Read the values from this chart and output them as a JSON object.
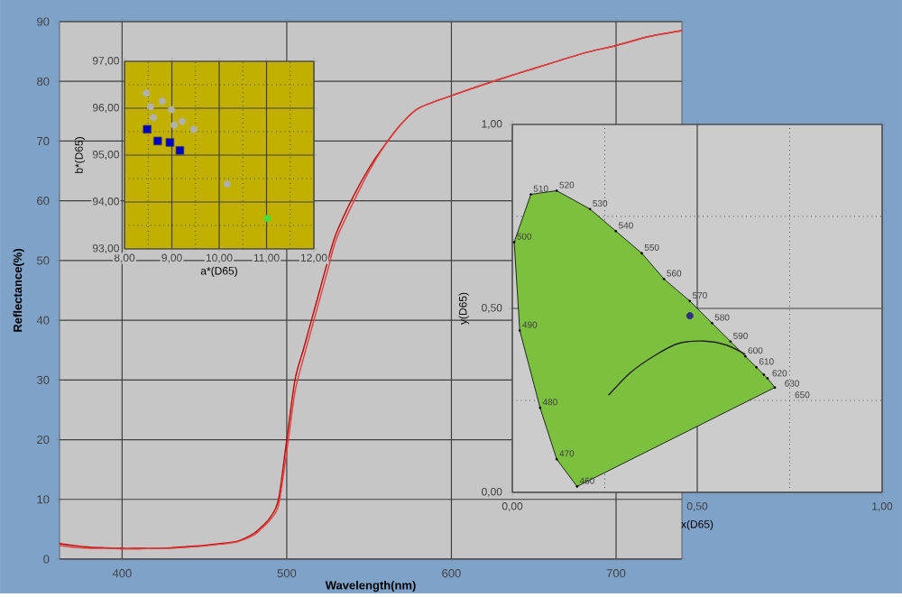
{
  "chart_data": [
    {
      "type": "line",
      "xlabel": "Wavelength(nm)",
      "ylabel": "Reflectance(%)",
      "x": [
        362,
        370,
        380,
        390,
        400,
        410,
        420,
        430,
        440,
        450,
        460,
        470,
        480,
        485,
        490,
        495,
        500,
        505,
        510,
        515,
        520,
        525,
        530,
        540,
        550,
        560,
        570,
        580,
        600,
        620,
        640,
        660,
        680,
        700,
        720,
        740
      ],
      "series": [
        {
          "color": "#c00000",
          "values": [
            2.6,
            2.3,
            2.0,
            1.9,
            1.8,
            1.8,
            1.8,
            1.9,
            2.1,
            2.3,
            2.6,
            3.0,
            4.3,
            5.5,
            7.0,
            10,
            20,
            30,
            35,
            40,
            45,
            50,
            54.5,
            60.5,
            65.5,
            69.5,
            73,
            75.5,
            77.6,
            79.5,
            81.3,
            83,
            84.7,
            86,
            87.5,
            88.5
          ]
        },
        {
          "color": "#e04040",
          "values": [
            2.3,
            2.0,
            1.8,
            1.8,
            1.7,
            1.7,
            1.8,
            1.8,
            2.0,
            2.2,
            2.5,
            2.9,
            4.0,
            5.2,
            6.6,
            9,
            18,
            28,
            33.5,
            38.5,
            43.5,
            48.5,
            53.5,
            59.5,
            65,
            69.5,
            73,
            75.5,
            77.6,
            79.5,
            81.3,
            83,
            84.7,
            86,
            87.5,
            88.5
          ]
        }
      ],
      "xlim": [
        362,
        740
      ],
      "ylim": [
        0,
        90
      ],
      "xticks": [
        400,
        500,
        600,
        700
      ],
      "yticks": [
        0,
        10,
        20,
        30,
        40,
        50,
        60,
        70,
        80,
        90
      ],
      "grid": true
    },
    {
      "type": "scatter",
      "xlabel": "a*(D65)",
      "ylabel": "b*(D65)",
      "series": [
        {
          "color": "#b0b0b0",
          "marker": "circle",
          "x": [
            8.46,
            8.55,
            8.8,
            8.99,
            8.61,
            9.05,
            9.22,
            9.46,
            10.17
          ],
          "values": [
            96.32,
            96.03,
            96.15,
            95.97,
            95.8,
            95.64,
            95.72,
            95.55,
            94.38
          ]
        },
        {
          "color": "#0000c0",
          "marker": "square",
          "x": [
            8.48,
            8.7,
            8.96,
            9.17
          ],
          "values": [
            95.55,
            95.3,
            95.27,
            95.1
          ]
        },
        {
          "color": "#40e040",
          "marker": "circle",
          "x": [
            11.02
          ],
          "values": [
            93.65
          ]
        }
      ],
      "xlim": [
        8,
        12
      ],
      "ylim": [
        93,
        97
      ],
      "xticks": [
        {
          "value": 8,
          "label": "8,00"
        },
        {
          "value": 8.5,
          "label": null
        },
        {
          "value": 9,
          "label": "9,00"
        },
        {
          "value": 9.5,
          "label": null
        },
        {
          "value": 10,
          "label": "10,00"
        },
        {
          "value": 10.5,
          "label": null
        },
        {
          "value": 11,
          "label": "11,00"
        },
        {
          "value": 11.5,
          "label": null
        },
        {
          "value": 12,
          "label": "12,00"
        }
      ],
      "yticks": [
        {
          "value": 93,
          "label": "93,00"
        },
        {
          "value": 93.5,
          "label": null
        },
        {
          "value": 94,
          "label": "94,00"
        },
        {
          "value": 94.5,
          "label": null
        },
        {
          "value": 95,
          "label": "95,00"
        },
        {
          "value": 95.5,
          "label": null
        },
        {
          "value": 96,
          "label": "96,00"
        },
        {
          "value": 96.5,
          "label": null
        },
        {
          "value": 97,
          "label": "97,00"
        }
      ],
      "grid": true
    },
    {
      "type": "scatter",
      "xlabel": "x(D65)",
      "ylabel": "y(D65)",
      "series": [
        {
          "type": "area",
          "color": "#7cc040",
          "marker": "circle",
          "x": [
            0.175,
            0.12,
            0.075,
            0.02,
            0.005,
            0.05,
            0.12,
            0.21,
            0.28,
            0.35,
            0.41,
            0.48,
            0.54,
            0.59,
            0.63,
            0.66,
            0.68,
            0.69,
            0.71
          ],
          "values": [
            0.016,
            0.09,
            0.23,
            0.44,
            0.68,
            0.81,
            0.82,
            0.77,
            0.71,
            0.65,
            0.58,
            0.52,
            0.46,
            0.41,
            0.37,
            0.34,
            0.32,
            0.31,
            0.285
          ]
        },
        {
          "type": "line",
          "color": "#202020",
          "marker": "none",
          "x": [
            0.26,
            0.32,
            0.39,
            0.45,
            0.52,
            0.58,
            0.63
          ],
          "values": [
            0.264,
            0.326,
            0.375,
            0.405,
            0.411,
            0.4,
            0.375
          ]
        },
        {
          "color": "#303080",
          "marker": "circle",
          "x": [
            0.48
          ],
          "values": [
            0.48
          ]
        }
      ],
      "annotations": [
        {
          "text": "460",
          "x": 0.175,
          "y": 0.016
        },
        {
          "text": "470",
          "x": 0.12,
          "y": 0.09
        },
        {
          "text": "480",
          "x": 0.075,
          "y": 0.23
        },
        {
          "text": "490",
          "x": 0.02,
          "y": 0.44
        },
        {
          "text": "500",
          "x": 0.005,
          "y": 0.68
        },
        {
          "text": "510",
          "x": 0.05,
          "y": 0.81
        },
        {
          "text": "520",
          "x": 0.12,
          "y": 0.82
        },
        {
          "text": "530",
          "x": 0.21,
          "y": 0.77
        },
        {
          "text": "540",
          "x": 0.28,
          "y": 0.71
        },
        {
          "text": "550",
          "x": 0.35,
          "y": 0.65
        },
        {
          "text": "560",
          "x": 0.41,
          "y": 0.58
        },
        {
          "text": "570",
          "x": 0.48,
          "y": 0.52
        },
        {
          "text": "580",
          "x": 0.54,
          "y": 0.46
        },
        {
          "text": "590",
          "x": 0.59,
          "y": 0.41
        },
        {
          "text": "600",
          "x": 0.63,
          "y": 0.37
        },
        {
          "text": "610",
          "x": 0.66,
          "y": 0.34
        },
        {
          "text": "620",
          "x": 0.68,
          "y": 0.32
        },
        {
          "text": "630",
          "x": 0.69,
          "y": 0.31
        },
        {
          "text": "650",
          "x": 0.71,
          "y": 0.285
        }
      ],
      "xlim": [
        0,
        1
      ],
      "ylim": [
        0,
        1
      ],
      "xticks": [
        {
          "value": 0,
          "label": "0,00"
        },
        {
          "value": 0.25,
          "label": null
        },
        {
          "value": 0.5,
          "label": "0,50"
        },
        {
          "value": 0.75,
          "label": null
        },
        {
          "value": 1,
          "label": "1,00"
        }
      ],
      "yticks": [
        {
          "value": 0,
          "label": "0,00"
        },
        {
          "value": 0.25,
          "label": null
        },
        {
          "value": 0.5,
          "label": "0,50"
        },
        {
          "value": 0.75,
          "label": null
        },
        {
          "value": 1,
          "label": "1,00"
        }
      ],
      "grid": true
    }
  ]
}
